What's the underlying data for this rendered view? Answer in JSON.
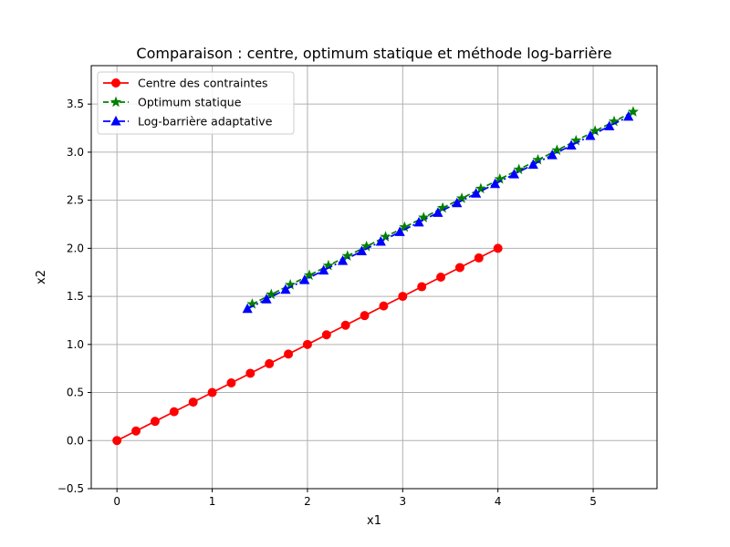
{
  "chart_data": {
    "type": "line",
    "title": "Comparaison : centre, optimum statique et méthode log-barrière",
    "xlabel": "x1",
    "ylabel": "x2",
    "xlim": [
      -0.27,
      5.67
    ],
    "ylim": [
      -0.5,
      3.9
    ],
    "xticks": [
      0,
      1,
      2,
      3,
      4,
      5
    ],
    "yticks": [
      -0.5,
      0.0,
      0.5,
      1.0,
      1.5,
      2.0,
      2.5,
      3.0,
      3.5
    ],
    "xtick_labels": [
      "0",
      "1",
      "2",
      "3",
      "4",
      "5"
    ],
    "ytick_labels": [
      "−0.5",
      "0.0",
      "0.5",
      "1.0",
      "1.5",
      "2.0",
      "2.5",
      "3.0",
      "3.5"
    ],
    "grid": true,
    "legend_position": "top-left",
    "series": [
      {
        "name": "Centre des contraintes",
        "color": "#ff0000",
        "linestyle": "solid",
        "marker": "circle",
        "x": [
          0,
          0.2,
          0.4,
          0.6,
          0.8,
          1.0,
          1.2,
          1.4,
          1.6,
          1.8,
          2.0,
          2.2,
          2.4,
          2.6,
          2.8,
          3.0,
          3.2,
          3.4,
          3.6,
          3.8,
          4.0
        ],
        "y": [
          0,
          0.1,
          0.2,
          0.3,
          0.4,
          0.5,
          0.6,
          0.7,
          0.8,
          0.9,
          1.0,
          1.1,
          1.2,
          1.3,
          1.4,
          1.5,
          1.6,
          1.7,
          1.8,
          1.9,
          2.0
        ]
      },
      {
        "name": "Optimum statique",
        "color": "#008000",
        "linestyle": "dashed",
        "marker": "star",
        "x": [
          1.42,
          1.62,
          1.82,
          2.02,
          2.22,
          2.42,
          2.62,
          2.82,
          3.02,
          3.22,
          3.42,
          3.62,
          3.82,
          4.02,
          4.22,
          4.42,
          4.62,
          4.82,
          5.02,
          5.22,
          5.42
        ],
        "y": [
          1.42,
          1.52,
          1.62,
          1.72,
          1.82,
          1.92,
          2.02,
          2.12,
          2.22,
          2.32,
          2.42,
          2.52,
          2.62,
          2.72,
          2.82,
          2.92,
          3.02,
          3.12,
          3.22,
          3.32,
          3.42
        ]
      },
      {
        "name": "Log-barrière adaptative",
        "color": "#0000ff",
        "linestyle": "dashdot",
        "marker": "triangle",
        "x": [
          1.37,
          1.57,
          1.77,
          1.97,
          2.17,
          2.37,
          2.57,
          2.77,
          2.97,
          3.17,
          3.37,
          3.57,
          3.77,
          3.97,
          4.17,
          4.37,
          4.57,
          4.77,
          4.97,
          5.17,
          5.37
        ],
        "y": [
          1.37,
          1.47,
          1.57,
          1.67,
          1.77,
          1.87,
          1.97,
          2.07,
          2.17,
          2.27,
          2.37,
          2.47,
          2.57,
          2.67,
          2.77,
          2.87,
          2.97,
          3.07,
          3.17,
          3.27,
          3.37
        ]
      }
    ]
  }
}
